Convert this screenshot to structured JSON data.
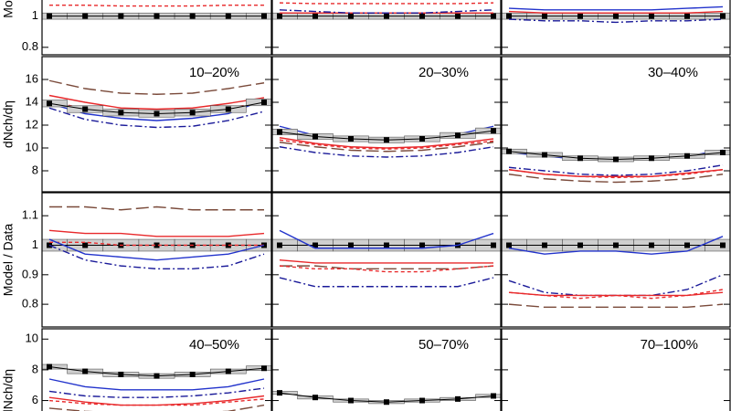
{
  "chart_data": [
    {
      "type": "line",
      "ylabel": "Model / Data",
      "ylim": [
        0.752,
        1.115
      ],
      "yticks": [
        0.8,
        1
      ],
      "categories": [
        null,
        null,
        null,
        null,
        null,
        null,
        null
      ],
      "series": [
        {
          "color": "#000000",
          "values": [
            1,
            1,
            1,
            1,
            1,
            1,
            1
          ],
          "errors": [
            0.02,
            0.02,
            0.02,
            0.02,
            0.02,
            0.02,
            0.02
          ]
        },
        {
          "color": "#e8292b",
          "dash": "dashed",
          "values": [
            1.07,
            1.07,
            1.065,
            1.065,
            1.065,
            1.07,
            1.07
          ]
        }
      ]
    },
    {
      "type": "line",
      "ylim": [
        0.752,
        1.115
      ],
      "categories": [
        null,
        null,
        null,
        null,
        null,
        null,
        null
      ],
      "series": [
        {
          "color": "#000000",
          "values": [
            1,
            1,
            1,
            1,
            1,
            1,
            1
          ],
          "errors": [
            0.02,
            0.02,
            0.02,
            0.02,
            0.02,
            0.02,
            0.02
          ]
        },
        {
          "color": "#e8292b",
          "dash": "dashed",
          "values": [
            1.085,
            1.08,
            1.08,
            1.08,
            1.08,
            1.08,
            1.085
          ]
        },
        {
          "color": "#e8292b",
          "values": [
            1.02,
            1.02,
            1.02,
            1.02,
            1.02,
            1.02,
            1.02
          ]
        },
        {
          "color": "#1a1a99",
          "dash": "dashdot",
          "values": [
            1.04,
            1.03,
            1.02,
            1.02,
            1.02,
            1.03,
            1.04
          ]
        }
      ]
    },
    {
      "type": "line",
      "ylim": [
        0.752,
        1.115
      ],
      "categories": [
        null,
        null,
        null,
        null,
        null,
        null,
        null
      ],
      "series": [
        {
          "color": "#000000",
          "values": [
            1,
            1,
            1,
            1,
            1,
            1,
            1
          ],
          "errors": [
            0.02,
            0.02,
            0.02,
            0.02,
            0.02,
            0.02,
            0.02
          ]
        },
        {
          "color": "#e8292b",
          "values": [
            1.03,
            1.02,
            1.02,
            1.02,
            1.02,
            1.02,
            1.03
          ]
        },
        {
          "color": "#2233cc",
          "values": [
            1.05,
            1.04,
            1.04,
            1.04,
            1.04,
            1.05,
            1.06
          ]
        },
        {
          "color": "#1a1a99",
          "dash": "dashdot",
          "values": [
            0.98,
            0.97,
            0.97,
            0.96,
            0.97,
            0.97,
            0.98
          ]
        }
      ]
    },
    {
      "type": "line",
      "label": "10–20%",
      "ylabel": "dNch/dη",
      "ylim": [
        6.16,
        18
      ],
      "yticks": [
        8,
        10,
        12,
        14,
        16
      ],
      "categories": [
        null,
        null,
        null,
        null,
        null,
        null,
        null
      ],
      "series": [
        {
          "color": "#7a4a3a",
          "dash": "long",
          "values": [
            15.9,
            15.2,
            14.8,
            14.7,
            14.8,
            15.2,
            15.7
          ]
        },
        {
          "color": "#e8292b",
          "values": [
            14.6,
            14.0,
            13.5,
            13.4,
            13.5,
            13.9,
            14.4
          ]
        },
        {
          "color": "#e8292b",
          "dash": "dashed",
          "values": [
            14.0,
            13.5,
            13.1,
            13.0,
            13.1,
            13.5,
            14.0
          ]
        },
        {
          "color": "#2233cc",
          "values": [
            13.9,
            13.0,
            12.6,
            12.4,
            12.6,
            13.0,
            14.2
          ]
        },
        {
          "color": "#1a1a99",
          "dash": "dashdot",
          "values": [
            13.5,
            12.5,
            12.0,
            11.8,
            11.9,
            12.4,
            13.2
          ]
        },
        {
          "color": "#000000",
          "values": [
            13.9,
            13.4,
            13.1,
            13.0,
            13.1,
            13.4,
            14.0
          ],
          "errors": [
            0.3,
            0.3,
            0.3,
            0.3,
            0.3,
            0.3,
            0.3
          ]
        }
      ]
    },
    {
      "type": "line",
      "label": "20–30%",
      "ylim": [
        6.16,
        18
      ],
      "categories": [
        null,
        null,
        null,
        null,
        null,
        null,
        null
      ],
      "series": [
        {
          "color": "#2233cc",
          "values": [
            11.9,
            11.1,
            10.8,
            10.7,
            10.8,
            11.2,
            11.9
          ]
        },
        {
          "color": "#e8292b",
          "values": [
            10.9,
            10.4,
            10.1,
            10.0,
            10.1,
            10.4,
            10.8
          ]
        },
        {
          "color": "#e8292b",
          "dash": "dashed",
          "values": [
            10.7,
            10.3,
            10.0,
            9.9,
            10.0,
            10.3,
            10.6
          ]
        },
        {
          "color": "#7a4a3a",
          "dash": "long",
          "values": [
            10.5,
            10.1,
            9.8,
            9.7,
            9.8,
            10.1,
            10.5
          ]
        },
        {
          "color": "#1a1a99",
          "dash": "dashdot",
          "values": [
            10.1,
            9.6,
            9.3,
            9.2,
            9.3,
            9.6,
            10.1
          ]
        },
        {
          "color": "#000000",
          "values": [
            11.4,
            11.0,
            10.8,
            10.7,
            10.8,
            11.1,
            11.5
          ],
          "errors": [
            0.25,
            0.25,
            0.25,
            0.25,
            0.25,
            0.25,
            0.25
          ]
        }
      ]
    },
    {
      "type": "line",
      "label": "30–40%",
      "ylim": [
        6.16,
        18
      ],
      "categories": [
        null,
        null,
        null,
        null,
        null,
        null,
        null
      ],
      "series": [
        {
          "color": "#2233cc",
          "values": [
            9.6,
            9.3,
            9.0,
            9.0,
            9.1,
            9.3,
            9.8
          ]
        },
        {
          "color": "#1a1a99",
          "dash": "dashdot",
          "values": [
            8.3,
            8.0,
            7.7,
            7.6,
            7.7,
            8.0,
            8.5
          ]
        },
        {
          "color": "#e8292b",
          "values": [
            8.1,
            7.7,
            7.5,
            7.5,
            7.5,
            7.8,
            8.1
          ]
        },
        {
          "color": "#e8292b",
          "dash": "dashed",
          "values": [
            8.1,
            7.7,
            7.5,
            7.4,
            7.5,
            7.7,
            8.1
          ]
        },
        {
          "color": "#7a4a3a",
          "dash": "long",
          "values": [
            7.7,
            7.3,
            7.1,
            7.0,
            7.1,
            7.3,
            7.7
          ]
        },
        {
          "color": "#000000",
          "values": [
            9.7,
            9.4,
            9.1,
            9.0,
            9.1,
            9.3,
            9.6
          ],
          "errors": [
            0.2,
            0.2,
            0.2,
            0.2,
            0.2,
            0.2,
            0.2
          ]
        }
      ]
    },
    {
      "type": "line",
      "ylabel": "Model / Data",
      "ylim": [
        0.723,
        1.178
      ],
      "yticks": [
        0.8,
        0.9,
        1,
        1.1
      ],
      "categories": [
        null,
        null,
        null,
        null,
        null,
        null,
        null
      ],
      "series": [
        {
          "color": "#000000",
          "values": [
            1,
            1,
            1,
            1,
            1,
            1,
            1
          ],
          "errors": [
            0.02,
            0.02,
            0.02,
            0.02,
            0.02,
            0.02,
            0.02
          ]
        },
        {
          "color": "#7a4a3a",
          "dash": "long",
          "values": [
            1.13,
            1.13,
            1.12,
            1.13,
            1.12,
            1.12,
            1.12
          ]
        },
        {
          "color": "#e8292b",
          "values": [
            1.05,
            1.04,
            1.04,
            1.03,
            1.03,
            1.03,
            1.04
          ]
        },
        {
          "color": "#e8292b",
          "dash": "dashed",
          "values": [
            1.01,
            1.01,
            1.0,
            1.0,
            1.0,
            1.0,
            1.0
          ]
        },
        {
          "color": "#2233cc",
          "values": [
            1.02,
            0.97,
            0.96,
            0.95,
            0.96,
            0.97,
            1.0
          ]
        },
        {
          "color": "#1a1a99",
          "dash": "dashdot",
          "values": [
            1.0,
            0.95,
            0.93,
            0.92,
            0.92,
            0.93,
            0.97
          ]
        }
      ]
    },
    {
      "type": "line",
      "ylim": [
        0.723,
        1.178
      ],
      "categories": [
        null,
        null,
        null,
        null,
        null,
        null,
        null
      ],
      "series": [
        {
          "color": "#000000",
          "values": [
            1,
            1,
            1,
            1,
            1,
            1,
            1
          ],
          "errors": [
            0.02,
            0.02,
            0.02,
            0.02,
            0.02,
            0.02,
            0.02
          ]
        },
        {
          "color": "#2233cc",
          "values": [
            1.05,
            0.99,
            0.99,
            0.99,
            0.99,
            1.0,
            1.04
          ]
        },
        {
          "color": "#e8292b",
          "values": [
            0.95,
            0.94,
            0.94,
            0.94,
            0.94,
            0.94,
            0.94
          ]
        },
        {
          "color": "#7a4a3a",
          "dash": "long",
          "values": [
            0.93,
            0.93,
            0.92,
            0.92,
            0.92,
            0.92,
            0.93
          ]
        },
        {
          "color": "#e8292b",
          "dash": "dashed",
          "values": [
            0.93,
            0.92,
            0.92,
            0.91,
            0.91,
            0.92,
            0.93
          ]
        },
        {
          "color": "#1a1a99",
          "dash": "dashdot",
          "values": [
            0.89,
            0.86,
            0.86,
            0.86,
            0.86,
            0.86,
            0.89
          ]
        }
      ]
    },
    {
      "type": "line",
      "ylim": [
        0.723,
        1.178
      ],
      "categories": [
        null,
        null,
        null,
        null,
        null,
        null,
        null
      ],
      "series": [
        {
          "color": "#000000",
          "values": [
            1,
            1,
            1,
            1,
            1,
            1,
            1
          ],
          "errors": [
            0.02,
            0.02,
            0.02,
            0.02,
            0.02,
            0.02,
            0.02
          ]
        },
        {
          "color": "#2233cc",
          "values": [
            0.99,
            0.97,
            0.98,
            0.98,
            0.97,
            0.98,
            1.03
          ]
        },
        {
          "color": "#1a1a99",
          "dash": "dashdot",
          "values": [
            0.88,
            0.84,
            0.83,
            0.83,
            0.83,
            0.85,
            0.9
          ]
        },
        {
          "color": "#e8292b",
          "values": [
            0.84,
            0.83,
            0.83,
            0.83,
            0.83,
            0.83,
            0.84
          ]
        },
        {
          "color": "#e8292b",
          "dash": "dashed",
          "values": [
            0.84,
            0.83,
            0.82,
            0.83,
            0.82,
            0.83,
            0.85
          ]
        },
        {
          "color": "#7a4a3a",
          "dash": "long",
          "values": [
            0.8,
            0.79,
            0.79,
            0.79,
            0.79,
            0.79,
            0.8
          ]
        }
      ]
    },
    {
      "type": "line",
      "label": "40–50%",
      "ylabel": "dNch/dη",
      "ylim": [
        5.2,
        10.67
      ],
      "yticks": [
        6,
        8,
        10
      ],
      "categories": [
        null,
        null,
        null,
        null,
        null,
        null,
        null
      ],
      "series": [
        {
          "color": "#2233cc",
          "values": [
            7.4,
            6.9,
            6.7,
            6.7,
            6.7,
            6.9,
            7.4
          ]
        },
        {
          "color": "#1a1a99",
          "dash": "dashdot",
          "values": [
            6.6,
            6.3,
            6.2,
            6.2,
            6.3,
            6.5,
            6.8
          ]
        },
        {
          "color": "#e8292b",
          "values": [
            6.2,
            5.9,
            5.7,
            5.7,
            5.8,
            6.0,
            6.3
          ]
        },
        {
          "color": "#e8292b",
          "dash": "dashed",
          "values": [
            6.0,
            5.8,
            5.7,
            5.7,
            5.7,
            5.9,
            6.1
          ]
        },
        {
          "color": "#7a4a3a",
          "dash": "long",
          "values": [
            5.5,
            5.3,
            5.2,
            5.2,
            5.2,
            5.3,
            5.7
          ]
        },
        {
          "color": "#000000",
          "values": [
            8.2,
            7.9,
            7.7,
            7.6,
            7.7,
            7.9,
            8.1
          ],
          "errors": [
            0.15,
            0.15,
            0.15,
            0.15,
            0.15,
            0.15,
            0.15
          ]
        }
      ]
    },
    {
      "type": "line",
      "label": "50–70%",
      "ylim": [
        5.2,
        10.67
      ],
      "categories": [
        null,
        null,
        null,
        null,
        null,
        null,
        null
      ],
      "series": [
        {
          "color": "#000000",
          "values": [
            6.5,
            6.2,
            6.0,
            5.9,
            6.0,
            6.1,
            6.3
          ],
          "errors": [
            0.1,
            0.1,
            0.1,
            0.1,
            0.1,
            0.1,
            0.1
          ]
        }
      ]
    },
    {
      "type": "line",
      "label": "70–100%",
      "ylim": [
        5.2,
        10.67
      ],
      "categories": [
        null,
        null,
        null,
        null,
        null,
        null,
        null
      ],
      "series": []
    }
  ]
}
